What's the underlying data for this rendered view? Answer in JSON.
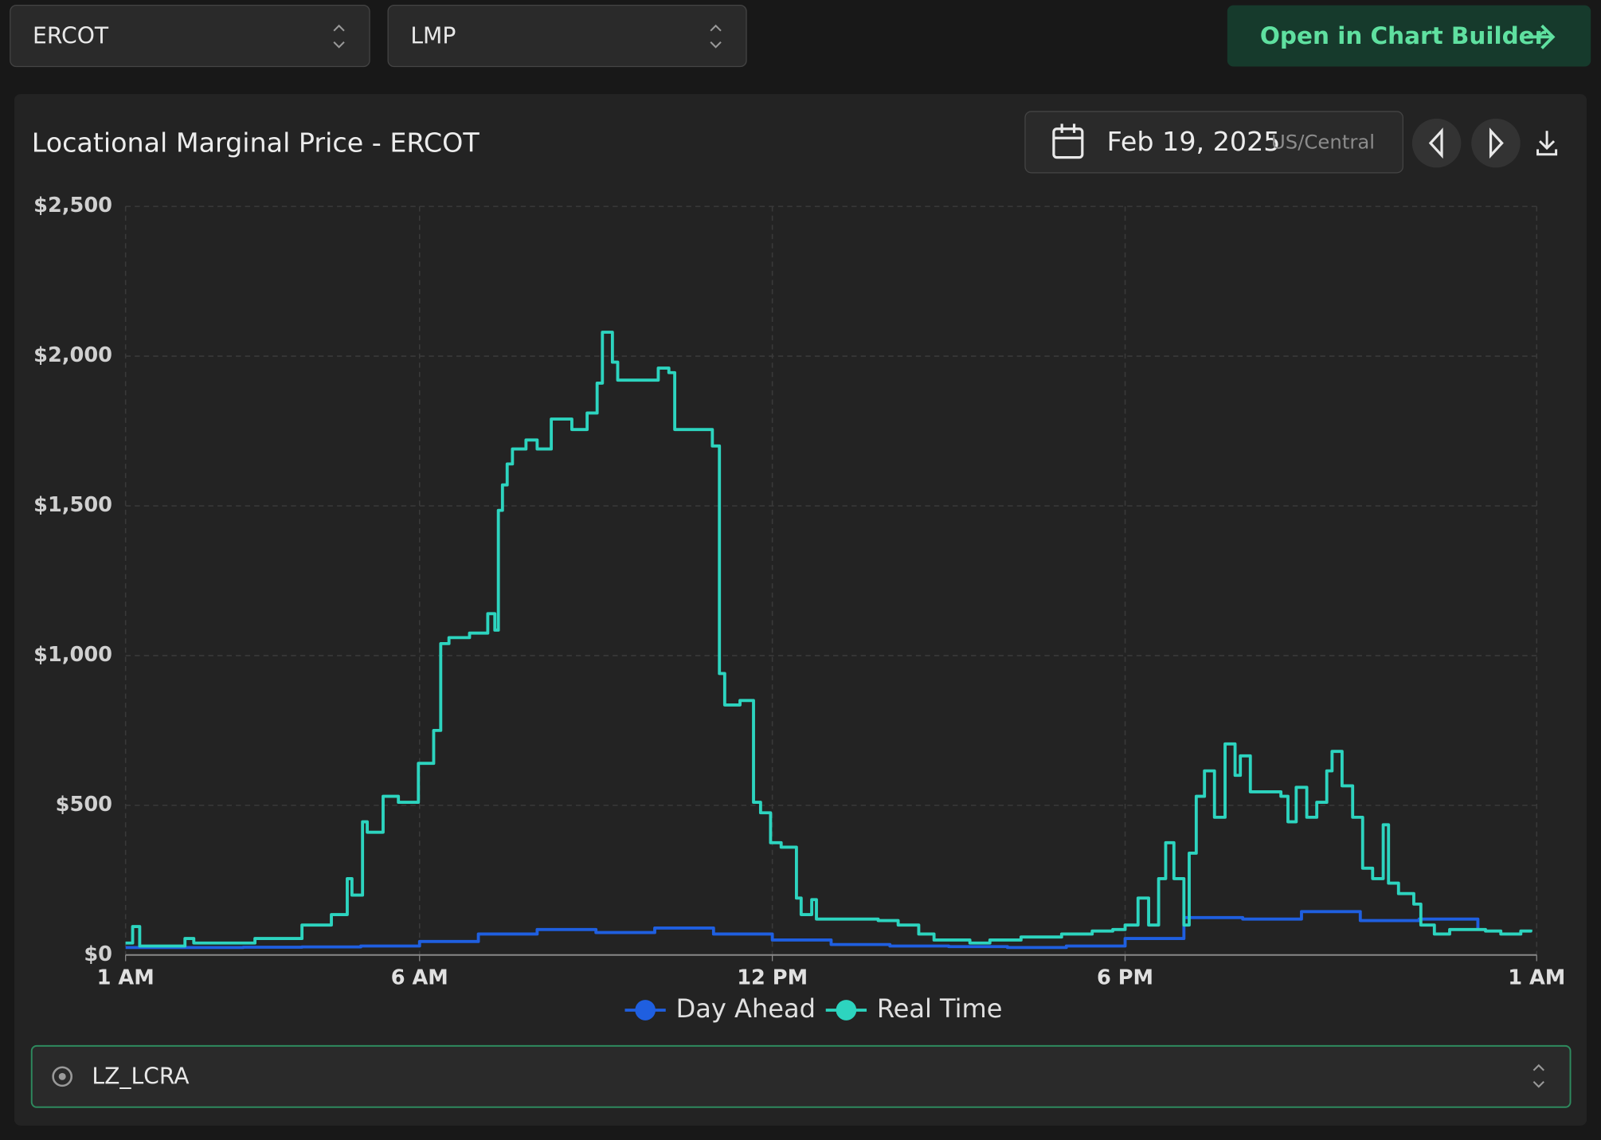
{
  "controls": {
    "market": "ERCOT",
    "metric": "LMP",
    "open_button": "Open in Chart Builder",
    "date": "Feb 19, 2025",
    "timezone": "US/Central",
    "location": "LZ_LCRA"
  },
  "chart_data": {
    "type": "line",
    "step": true,
    "title": "Locational Marginal Price - ERCOT",
    "xlim": [
      0,
      24
    ],
    "xticks": [
      {
        "value": 0,
        "label": "1 AM"
      },
      {
        "value": 5,
        "label": "6 AM"
      },
      {
        "value": 11,
        "label": "12 PM"
      },
      {
        "value": 17,
        "label": "6 PM"
      },
      {
        "value": 24,
        "label": "1 AM"
      }
    ],
    "ylim": [
      0,
      2500
    ],
    "yticks": [
      {
        "value": 0,
        "label": "$0"
      },
      {
        "value": 500,
        "label": "$500"
      },
      {
        "value": 1000,
        "label": "$1,000"
      },
      {
        "value": 1500,
        "label": "$1,500"
      },
      {
        "value": 2000,
        "label": "$2,000"
      },
      {
        "value": 2500,
        "label": "$2,500"
      }
    ],
    "grid": true,
    "legend": "bottom",
    "series": [
      {
        "name": "Day Ahead",
        "color": "#1f5fe0",
        "x": [
          0,
          1,
          2,
          3,
          4,
          5,
          6,
          7,
          8,
          9,
          10,
          11,
          12,
          13,
          14,
          15,
          16,
          17,
          18,
          19,
          20,
          21,
          22,
          23
        ],
        "values": [
          25,
          25,
          26,
          27,
          30,
          45,
          70,
          85,
          75,
          90,
          70,
          50,
          35,
          30,
          28,
          25,
          30,
          55,
          125,
          120,
          145,
          115,
          120,
          90
        ]
      },
      {
        "name": "Real Time",
        "color": "#2dd4bf",
        "x": [
          0,
          0.12,
          0.24,
          0.47,
          1.01,
          1.16,
          2.2,
          3.0,
          3.5,
          3.77,
          3.85,
          4.03,
          4.11,
          4.38,
          4.64,
          4.98,
          5.24,
          5.36,
          5.5,
          5.85,
          6.16,
          6.28,
          6.34,
          6.41,
          6.49,
          6.58,
          6.81,
          7.0,
          7.24,
          7.5,
          7.59,
          7.85,
          8.02,
          8.11,
          8.28,
          8.37,
          8.8,
          9.06,
          9.24,
          9.34,
          9.67,
          9.98,
          10.1,
          10.19,
          10.45,
          10.68,
          10.8,
          10.97,
          11.15,
          11.41,
          11.49,
          11.67,
          11.75,
          12.27,
          12.8,
          13.14,
          13.49,
          13.75,
          14.36,
          14.7,
          15.23,
          15.92,
          16.44,
          16.79,
          17.0,
          17.22,
          17.4,
          17.57,
          17.69,
          17.83,
          18.0,
          18.09,
          18.21,
          18.35,
          18.52,
          18.7,
          18.87,
          18.96,
          19.13,
          19.39,
          19.65,
          19.77,
          19.91,
          20.09,
          20.26,
          20.43,
          20.52,
          20.69,
          20.87,
          21.04,
          21.21,
          21.39,
          21.48,
          21.65,
          21.91,
          22.03,
          22.26,
          22.52,
          22.86,
          23.13,
          23.39,
          23.73,
          23.9
        ],
        "values": [
          40,
          95,
          30,
          30,
          55,
          40,
          55,
          100,
          135,
          255,
          200,
          445,
          410,
          530,
          510,
          640,
          750,
          1040,
          1060,
          1075,
          1140,
          1085,
          1485,
          1570,
          1640,
          1690,
          1720,
          1690,
          1790,
          1790,
          1755,
          1810,
          1910,
          2080,
          1980,
          1920,
          1920,
          1960,
          1945,
          1755,
          1755,
          1700,
          940,
          835,
          850,
          510,
          475,
          375,
          360,
          190,
          135,
          185,
          120,
          120,
          115,
          100,
          70,
          50,
          40,
          50,
          60,
          70,
          80,
          85,
          100,
          190,
          100,
          255,
          375,
          255,
          100,
          340,
          530,
          615,
          460,
          705,
          600,
          665,
          545,
          545,
          530,
          445,
          560,
          460,
          510,
          615,
          680,
          565,
          460,
          290,
          255,
          435,
          240,
          205,
          170,
          100,
          70,
          85,
          85,
          80,
          70,
          80,
          85
        ]
      }
    ]
  }
}
